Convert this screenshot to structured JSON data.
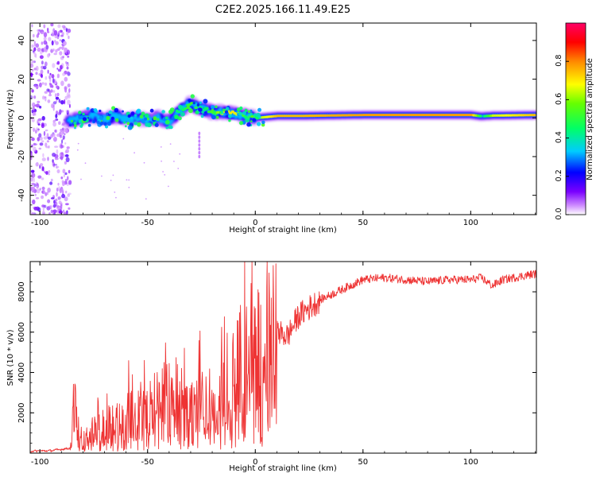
{
  "chart_data": [
    {
      "type": "heatmap",
      "title": "C2E2.2025.166.11.49.E25",
      "xlabel": "Height of straight line (km)",
      "ylabel": "Frequency (Hz)",
      "xlim": [
        -104.5,
        130.5
      ],
      "ylim": [
        -50,
        49
      ],
      "x_ticks": [
        -100,
        -50,
        0,
        50,
        100
      ],
      "x_tick_labels": [
        "-100",
        "-50",
        "0",
        "50",
        "100"
      ],
      "y_ticks": [
        -40,
        -20,
        0,
        20,
        40
      ],
      "y_tick_labels": [
        "-40",
        "-20",
        "0",
        "20",
        "40"
      ],
      "colorbar": {
        "label": "Normalized spectral amplitude",
        "range": [
          0,
          1
        ],
        "ticks": [
          0.0,
          0.2,
          0.4,
          0.6,
          0.8
        ],
        "tick_labels": [
          "0.0",
          "0.2",
          "0.4",
          "0.6",
          "0.8"
        ],
        "colormap": [
          "#ffffff",
          "#cc88ff",
          "#7a00ff",
          "#0000ff",
          "#00ccff",
          "#00ff66",
          "#66ff00",
          "#ffff00",
          "#ff8800",
          "#ff0000",
          "#ff0066"
        ]
      },
      "ridge": {
        "x": [
          -87,
          -80,
          -75,
          -70,
          -65,
          -60,
          -55,
          -50,
          -45,
          -40,
          -35,
          -32,
          -30,
          -28,
          -25,
          -20,
          -15,
          -10,
          -5,
          0,
          10,
          20,
          50,
          100,
          105,
          110,
          130
        ],
        "freq": [
          -2,
          0,
          1,
          -1,
          1,
          -1,
          0,
          -1,
          0,
          -2,
          4,
          6,
          8,
          6,
          5,
          3,
          3,
          2,
          1,
          0,
          1,
          1,
          1.5,
          1.5,
          0.8,
          1.2,
          1.5
        ],
        "amplitude": [
          0.3,
          0.35,
          0.35,
          0.35,
          0.35,
          0.35,
          0.35,
          0.35,
          0.4,
          0.4,
          0.45,
          0.5,
          0.55,
          0.5,
          0.45,
          0.55,
          0.7,
          0.7,
          0.5,
          0.6,
          0.75,
          0.75,
          0.78,
          0.78,
          0.4,
          0.65,
          0.75
        ]
      },
      "noise_region_x": [
        -104.5,
        -86
      ],
      "outliers": [
        {
          "x": -26,
          "freq_min": -20,
          "freq_max": -8
        }
      ]
    },
    {
      "type": "line",
      "series": [
        {
          "name": "SNR",
          "color": "#ee3333",
          "x": [
            -104.5,
            -95,
            -86,
            -84,
            -80,
            -75,
            -70,
            -65,
            -60,
            -55,
            -50,
            -45,
            -40,
            -35,
            -33,
            -30,
            -25,
            -20,
            -15,
            -12,
            -10,
            -5,
            0,
            5,
            10,
            15,
            20,
            30,
            40,
            50,
            60,
            70,
            80,
            90,
            100,
            105,
            110,
            115,
            120,
            125,
            130.5
          ],
          "y": [
            100,
            120,
            250,
            2400,
            800,
            1200,
            1400,
            1700,
            1900,
            2200,
            2400,
            2700,
            2900,
            3000,
            3800,
            2400,
            2600,
            2200,
            3000,
            2800,
            4500,
            4800,
            5000,
            5500,
            6000,
            5800,
            6800,
            7600,
            8100,
            8600,
            8700,
            8600,
            8500,
            8600,
            8600,
            8700,
            8300,
            8600,
            8700,
            8800,
            8900
          ]
        }
      ],
      "xlabel": "Height of straight line (km)",
      "ylabel": "SNR (10 * v/v)",
      "xlim": [
        -104.5,
        130.5
      ],
      "ylim": [
        0,
        9500
      ],
      "x_ticks": [
        -100,
        -50,
        0,
        50,
        100
      ],
      "x_tick_labels": [
        "-100",
        "-50",
        "0",
        "50",
        "100"
      ],
      "y_ticks": [
        2000,
        4000,
        6000,
        8000
      ],
      "y_tick_labels": [
        "2000",
        "4000",
        "6000",
        "8000"
      ]
    }
  ]
}
